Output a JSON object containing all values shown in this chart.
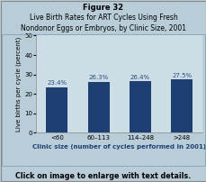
{
  "title_line1": "Figure 32",
  "title_line2": "Live Birth Rates for ART Cycles Using Fresh",
  "title_line3": "Nondonor Eggs or Embryos, by Clinic Size, 2001",
  "categories": [
    "<60",
    "60–113",
    "114–248",
    ">248"
  ],
  "values": [
    23.4,
    26.3,
    26.4,
    27.5
  ],
  "bar_labels": [
    "23.4%",
    "26.3%",
    "26.4%",
    "27.5%"
  ],
  "bar_color": "#1e3f72",
  "ylabel": "Live births per cycle (percent)",
  "xlabel": "Clinic size (number of cycles performed in 2001)",
  "ylim": [
    0,
    50
  ],
  "yticks": [
    0,
    10,
    20,
    30,
    40,
    50
  ],
  "title_bg_color": "#aec8d5",
  "plot_bg_color": "#cddde6",
  "outer_bg_color": "#b8cdd8",
  "footer_text": "Click on image to enlarge with text details.",
  "title_fontsize": 6.0,
  "label_fontsize": 5.0,
  "axis_fontsize": 5.0,
  "bar_label_fontsize": 5.0,
  "bar_label_color": "#2a5080"
}
